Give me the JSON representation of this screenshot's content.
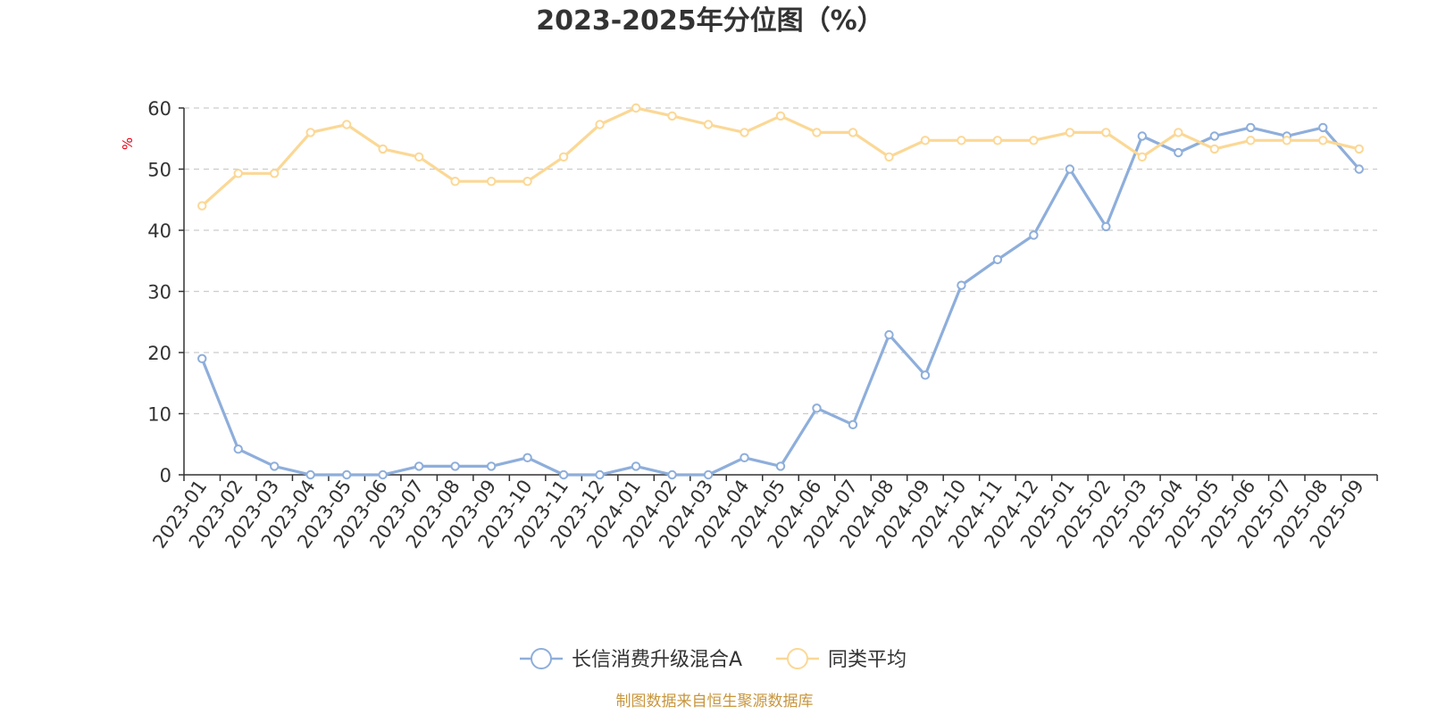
{
  "chart_data": {
    "type": "line",
    "title": "2023-2025年分位图（%）",
    "ylabel": "%",
    "ylim": [
      0,
      60
    ],
    "yticks": [
      0,
      10,
      20,
      30,
      40,
      50,
      60
    ],
    "grid": true,
    "legend_position": "bottom",
    "categories": [
      "2023-01",
      "2023-02",
      "2023-03",
      "2023-04",
      "2023-05",
      "2023-06",
      "2023-07",
      "2023-08",
      "2023-09",
      "2023-10",
      "2023-11",
      "2023-12",
      "2024-01",
      "2024-02",
      "2024-03",
      "2024-04",
      "2024-05",
      "2024-06",
      "2024-07",
      "2024-08",
      "2024-09",
      "2024-10",
      "2024-11",
      "2024-12",
      "2025-01",
      "2025-02",
      "2025-03",
      "2025-04",
      "2025-05",
      "2025-06",
      "2025-07",
      "2025-08",
      "2025-09"
    ],
    "series": [
      {
        "name": "长信消费升级混合A",
        "color": "#8eaedb",
        "values": [
          19,
          4.2,
          1.4,
          0,
          0,
          0,
          1.4,
          1.4,
          1.4,
          2.8,
          0,
          0,
          1.4,
          0,
          0,
          2.8,
          1.4,
          10.9,
          8.2,
          22.9,
          16.3,
          31,
          35.2,
          39.2,
          50,
          40.6,
          55.4,
          52.7,
          55.4,
          56.8,
          55.4,
          56.8,
          50
        ]
      },
      {
        "name": "同类平均",
        "color": "#fbd896",
        "values": [
          44,
          49.3,
          49.3,
          56,
          57.3,
          53.3,
          52,
          48,
          48,
          48,
          52,
          57.3,
          60,
          58.7,
          57.3,
          56,
          58.7,
          56,
          56,
          52,
          54.7,
          54.7,
          54.7,
          54.7,
          56,
          56,
          52,
          56,
          53.3,
          54.7,
          54.7,
          54.7,
          53.3
        ]
      }
    ],
    "source_note": "制图数据来自恒生聚源数据库"
  }
}
